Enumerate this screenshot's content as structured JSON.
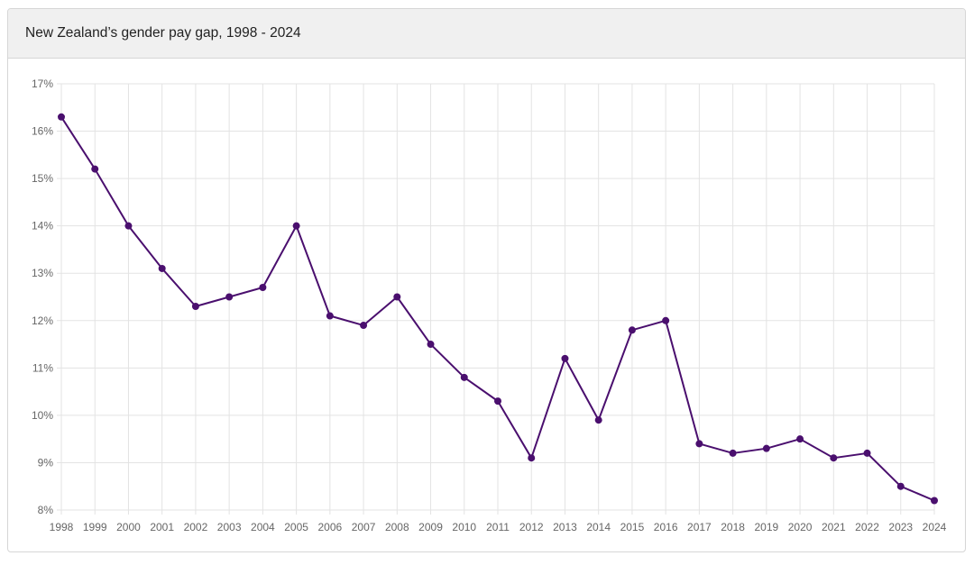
{
  "header": {
    "title": "New Zealand’s gender pay gap, 1998 - 2024"
  },
  "colors": {
    "series": "#4a0f6e",
    "grid": "#e3e3e3",
    "tick_text": "#666666"
  },
  "chart_data": {
    "type": "line",
    "title": "New Zealand’s gender pay gap, 1998 - 2024",
    "xlabel": "",
    "ylabel": "",
    "x": [
      "1998",
      "1999",
      "2000",
      "2001",
      "2002",
      "2003",
      "2004",
      "2005",
      "2006",
      "2007",
      "2008",
      "2009",
      "2010",
      "2011",
      "2012",
      "2013",
      "2014",
      "2015",
      "2016",
      "2017",
      "2018",
      "2019",
      "2020",
      "2021",
      "2022",
      "2023",
      "2024"
    ],
    "series": [
      {
        "values": [
          16.3,
          15.2,
          14.0,
          13.1,
          12.3,
          12.5,
          12.7,
          14.0,
          12.1,
          11.9,
          12.5,
          11.5,
          10.8,
          10.3,
          9.1,
          11.2,
          9.9,
          11.8,
          12.0,
          9.4,
          9.2,
          9.3,
          9.5,
          9.1,
          9.2,
          8.5,
          8.2
        ]
      }
    ],
    "ylim": [
      8,
      17
    ],
    "yticks": [
      8,
      9,
      10,
      11,
      12,
      13,
      14,
      15,
      16,
      17
    ],
    "ytick_labels": [
      "8%",
      "9%",
      "10%",
      "11%",
      "12%",
      "13%",
      "14%",
      "15%",
      "16%",
      "17%"
    ],
    "grid": true,
    "legend": "none"
  }
}
